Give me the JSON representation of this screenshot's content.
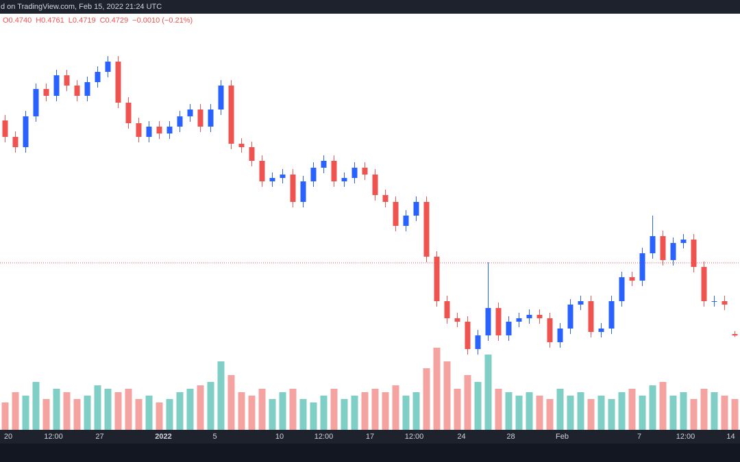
{
  "chart_data": {
    "type": "candlestick",
    "title": "d on TradingView.com, Feb 15, 2022 21:24 UTC",
    "ohlc_legend": [
      "O0.4740",
      "H0.4761",
      "L0.4719",
      "C0.4729",
      "−0.0010 (−0.21%)"
    ],
    "ohlc": [
      [
        0.63,
        0.634,
        0.614,
        0.618
      ],
      [
        0.618,
        0.622,
        0.6065,
        0.6105
      ],
      [
        0.6105,
        0.637,
        0.6065,
        0.633
      ],
      [
        0.633,
        0.657,
        0.629,
        0.653
      ],
      [
        0.653,
        0.657,
        0.644,
        0.648
      ],
      [
        0.648,
        0.667,
        0.644,
        0.663
      ],
      [
        0.663,
        0.667,
        0.6515,
        0.6555
      ],
      [
        0.6555,
        0.6595,
        0.644,
        0.648
      ],
      [
        0.648,
        0.662,
        0.644,
        0.658
      ],
      [
        0.658,
        0.6695,
        0.654,
        0.6655
      ],
      [
        0.6655,
        0.677,
        0.6615,
        0.673
      ],
      [
        0.673,
        0.677,
        0.639,
        0.643
      ],
      [
        0.643,
        0.647,
        0.624,
        0.628
      ],
      [
        0.628,
        0.632,
        0.614,
        0.618
      ],
      [
        0.618,
        0.6295,
        0.614,
        0.6255
      ],
      [
        0.6255,
        0.6295,
        0.6165,
        0.6205
      ],
      [
        0.6205,
        0.6295,
        0.6165,
        0.6255
      ],
      [
        0.6255,
        0.637,
        0.6215,
        0.633
      ],
      [
        0.633,
        0.642,
        0.629,
        0.638
      ],
      [
        0.638,
        0.642,
        0.6215,
        0.6255
      ],
      [
        0.6255,
        0.642,
        0.6215,
        0.638
      ],
      [
        0.638,
        0.6595,
        0.634,
        0.6555
      ],
      [
        0.6555,
        0.6595,
        0.609,
        0.613
      ],
      [
        0.613,
        0.617,
        0.6065,
        0.6105
      ],
      [
        0.6105,
        0.6145,
        0.5965,
        0.6005
      ],
      [
        0.6005,
        0.6045,
        0.5815,
        0.5855
      ],
      [
        0.5855,
        0.592,
        0.5815,
        0.588
      ],
      [
        0.588,
        0.5945,
        0.584,
        0.5905
      ],
      [
        0.5905,
        0.5945,
        0.5665,
        0.5705
      ],
      [
        0.5705,
        0.5895,
        0.5665,
        0.5855
      ],
      [
        0.5855,
        0.5995,
        0.5815,
        0.5955
      ],
      [
        0.5955,
        0.6045,
        0.5915,
        0.6005
      ],
      [
        0.6005,
        0.6045,
        0.5815,
        0.5855
      ],
      [
        0.5855,
        0.592,
        0.5815,
        0.588
      ],
      [
        0.588,
        0.5995,
        0.584,
        0.5955
      ],
      [
        0.5955,
        0.5995,
        0.5865,
        0.5905
      ],
      [
        0.5905,
        0.5945,
        0.5715,
        0.5755
      ],
      [
        0.5755,
        0.5795,
        0.5665,
        0.5705
      ],
      [
        0.5705,
        0.5745,
        0.549,
        0.553
      ],
      [
        0.553,
        0.5645,
        0.549,
        0.5605
      ],
      [
        0.5605,
        0.5745,
        0.5565,
        0.5705
      ],
      [
        0.5705,
        0.5745,
        0.5265,
        0.5305
      ],
      [
        0.5305,
        0.5345,
        0.494,
        0.498
      ],
      [
        0.498,
        0.502,
        0.4815,
        0.4855
      ],
      [
        0.4855,
        0.4895,
        0.479,
        0.483
      ],
      [
        0.483,
        0.487,
        0.459,
        0.463
      ],
      [
        0.463,
        0.477,
        0.459,
        0.473
      ],
      [
        0.473,
        0.5265,
        0.469,
        0.493
      ],
      [
        0.493,
        0.497,
        0.469,
        0.473
      ],
      [
        0.473,
        0.487,
        0.469,
        0.483
      ],
      [
        0.483,
        0.4895,
        0.479,
        0.4855
      ],
      [
        0.4855,
        0.492,
        0.4815,
        0.488
      ],
      [
        0.488,
        0.492,
        0.4815,
        0.4855
      ],
      [
        0.4855,
        0.4895,
        0.464,
        0.468
      ],
      [
        0.468,
        0.482,
        0.464,
        0.478
      ],
      [
        0.478,
        0.4995,
        0.474,
        0.4955
      ],
      [
        0.4955,
        0.502,
        0.4915,
        0.498
      ],
      [
        0.498,
        0.502,
        0.4715,
        0.4755
      ],
      [
        0.4755,
        0.482,
        0.4715,
        0.478
      ],
      [
        0.478,
        0.502,
        0.474,
        0.498
      ],
      [
        0.498,
        0.5195,
        0.494,
        0.5155
      ],
      [
        0.5155,
        0.5195,
        0.509,
        0.513
      ],
      [
        0.513,
        0.537,
        0.509,
        0.533
      ],
      [
        0.533,
        0.5605,
        0.529,
        0.5455
      ],
      [
        0.5455,
        0.5495,
        0.524,
        0.528
      ],
      [
        0.528,
        0.5445,
        0.524,
        0.5405
      ],
      [
        0.5405,
        0.547,
        0.5365,
        0.543
      ],
      [
        0.543,
        0.547,
        0.519,
        0.523
      ],
      [
        0.523,
        0.527,
        0.494,
        0.498
      ],
      [
        0.498,
        0.502,
        0.494,
        0.498
      ],
      [
        0.498,
        0.502,
        0.4915,
        0.4955
      ],
      [
        0.474,
        0.4761,
        0.4719,
        0.4729
      ]
    ],
    "volume": [
      40,
      55,
      50,
      70,
      45,
      60,
      55,
      45,
      50,
      65,
      60,
      55,
      60,
      45,
      50,
      40,
      45,
      55,
      60,
      65,
      70,
      100,
      80,
      55,
      50,
      60,
      45,
      55,
      60,
      45,
      40,
      50,
      60,
      45,
      50,
      55,
      60,
      55,
      65,
      50,
      55,
      90,
      120,
      100,
      60,
      80,
      70,
      110,
      60,
      55,
      50,
      55,
      50,
      45,
      60,
      50,
      55,
      45,
      50,
      45,
      55,
      60,
      50,
      65,
      70,
      50,
      55,
      45,
      60,
      55,
      50,
      45
    ],
    "ylim": [
      0.404,
      0.708
    ],
    "volume_lim": [
      0,
      200
    ],
    "price_line": 0.526,
    "xticks": [
      {
        "value": 0.3,
        "label": "20"
      },
      {
        "value": 4.7,
        "label": "12:00"
      },
      {
        "value": 9.2,
        "label": "27"
      },
      {
        "value": 15.4,
        "label": "2022"
      },
      {
        "value": 20.4,
        "label": "5"
      },
      {
        "value": 26.7,
        "label": "10"
      },
      {
        "value": 31,
        "label": "12:00"
      },
      {
        "value": 35.5,
        "label": "17"
      },
      {
        "value": 39.8,
        "label": "12:00"
      },
      {
        "value": 44.4,
        "label": "24"
      },
      {
        "value": 49.2,
        "label": "28"
      },
      {
        "value": 54.2,
        "label": "Feb"
      },
      {
        "value": 61.7,
        "label": "7"
      },
      {
        "value": 66.2,
        "label": "12:00"
      },
      {
        "value": 70.6,
        "label": "14"
      }
    ],
    "up_color": "#2962ff",
    "down_color": "#ef5350",
    "volume_up_color": "#7fcfc6",
    "volume_down_color": "#f5a3a1"
  }
}
